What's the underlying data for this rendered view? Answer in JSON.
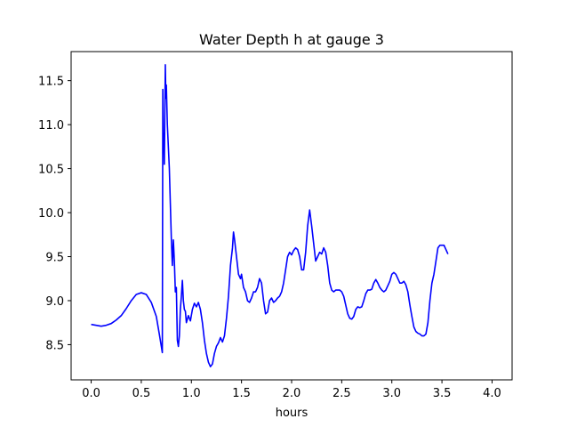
{
  "chart_data": {
    "type": "line",
    "title": "Water Depth h at gauge 3",
    "xlabel": "hours",
    "ylabel": "",
    "xlim": [
      -0.2,
      4.2
    ],
    "ylim": [
      8.1,
      11.83
    ],
    "grid": false,
    "xticks": [
      0.0,
      0.5,
      1.0,
      1.5,
      2.0,
      2.5,
      3.0,
      3.5,
      4.0
    ],
    "xtick_labels": [
      "0.0",
      "0.5",
      "1.0",
      "1.5",
      "2.0",
      "2.5",
      "3.0",
      "3.5",
      "4.0"
    ],
    "yticks": [
      8.5,
      9.0,
      9.5,
      10.0,
      10.5,
      11.0,
      11.5
    ],
    "ytick_labels": [
      "8.5",
      "9.0",
      "9.5",
      "10.0",
      "10.5",
      "11.0",
      "11.5"
    ],
    "series": [
      {
        "color": "#0000ff",
        "points": [
          [
            0.0,
            8.73
          ],
          [
            0.05,
            8.72
          ],
          [
            0.1,
            8.71
          ],
          [
            0.15,
            8.72
          ],
          [
            0.2,
            8.74
          ],
          [
            0.25,
            8.78
          ],
          [
            0.3,
            8.83
          ],
          [
            0.35,
            8.91
          ],
          [
            0.4,
            9.0
          ],
          [
            0.45,
            9.07
          ],
          [
            0.5,
            9.09
          ],
          [
            0.55,
            9.07
          ],
          [
            0.6,
            8.98
          ],
          [
            0.65,
            8.82
          ],
          [
            0.68,
            8.62
          ],
          [
            0.7,
            8.48
          ],
          [
            0.71,
            8.41
          ],
          [
            0.715,
            11.4
          ],
          [
            0.72,
            10.7
          ],
          [
            0.725,
            10.9
          ],
          [
            0.73,
            10.55
          ],
          [
            0.74,
            11.68
          ],
          [
            0.745,
            11.3
          ],
          [
            0.75,
            11.45
          ],
          [
            0.76,
            11.0
          ],
          [
            0.77,
            10.75
          ],
          [
            0.78,
            10.5
          ],
          [
            0.79,
            10.1
          ],
          [
            0.8,
            9.7
          ],
          [
            0.81,
            9.4
          ],
          [
            0.82,
            9.69
          ],
          [
            0.83,
            9.45
          ],
          [
            0.84,
            9.1
          ],
          [
            0.85,
            9.15
          ],
          [
            0.86,
            8.55
          ],
          [
            0.87,
            8.48
          ],
          [
            0.88,
            8.6
          ],
          [
            0.89,
            8.9
          ],
          [
            0.9,
            9.05
          ],
          [
            0.91,
            9.23
          ],
          [
            0.92,
            9.0
          ],
          [
            0.93,
            8.9
          ],
          [
            0.94,
            8.88
          ],
          [
            0.95,
            8.75
          ],
          [
            0.97,
            8.83
          ],
          [
            0.99,
            8.77
          ],
          [
            1.01,
            8.9
          ],
          [
            1.03,
            8.97
          ],
          [
            1.05,
            8.93
          ],
          [
            1.07,
            8.98
          ],
          [
            1.09,
            8.9
          ],
          [
            1.11,
            8.75
          ],
          [
            1.13,
            8.55
          ],
          [
            1.15,
            8.4
          ],
          [
            1.17,
            8.3
          ],
          [
            1.19,
            8.25
          ],
          [
            1.21,
            8.28
          ],
          [
            1.23,
            8.4
          ],
          [
            1.25,
            8.48
          ],
          [
            1.27,
            8.52
          ],
          [
            1.29,
            8.58
          ],
          [
            1.31,
            8.53
          ],
          [
            1.33,
            8.6
          ],
          [
            1.35,
            8.8
          ],
          [
            1.37,
            9.05
          ],
          [
            1.39,
            9.4
          ],
          [
            1.41,
            9.6
          ],
          [
            1.42,
            9.78
          ],
          [
            1.43,
            9.7
          ],
          [
            1.45,
            9.5
          ],
          [
            1.47,
            9.3
          ],
          [
            1.49,
            9.25
          ],
          [
            1.5,
            9.3
          ],
          [
            1.52,
            9.15
          ],
          [
            1.54,
            9.1
          ],
          [
            1.56,
            9.0
          ],
          [
            1.58,
            8.98
          ],
          [
            1.6,
            9.03
          ],
          [
            1.62,
            9.1
          ],
          [
            1.64,
            9.1
          ],
          [
            1.66,
            9.15
          ],
          [
            1.68,
            9.25
          ],
          [
            1.7,
            9.2
          ],
          [
            1.72,
            9.0
          ],
          [
            1.74,
            8.85
          ],
          [
            1.76,
            8.87
          ],
          [
            1.78,
            9.0
          ],
          [
            1.8,
            9.03
          ],
          [
            1.82,
            8.98
          ],
          [
            1.84,
            9.0
          ],
          [
            1.86,
            9.03
          ],
          [
            1.88,
            9.05
          ],
          [
            1.9,
            9.1
          ],
          [
            1.92,
            9.2
          ],
          [
            1.94,
            9.35
          ],
          [
            1.96,
            9.5
          ],
          [
            1.98,
            9.55
          ],
          [
            2.0,
            9.52
          ],
          [
            2.02,
            9.57
          ],
          [
            2.04,
            9.6
          ],
          [
            2.06,
            9.58
          ],
          [
            2.08,
            9.5
          ],
          [
            2.1,
            9.35
          ],
          [
            2.12,
            9.35
          ],
          [
            2.14,
            9.55
          ],
          [
            2.16,
            9.85
          ],
          [
            2.18,
            10.03
          ],
          [
            2.2,
            9.85
          ],
          [
            2.22,
            9.65
          ],
          [
            2.24,
            9.45
          ],
          [
            2.26,
            9.5
          ],
          [
            2.28,
            9.55
          ],
          [
            2.3,
            9.53
          ],
          [
            2.32,
            9.6
          ],
          [
            2.34,
            9.55
          ],
          [
            2.36,
            9.4
          ],
          [
            2.38,
            9.2
          ],
          [
            2.4,
            9.12
          ],
          [
            2.42,
            9.1
          ],
          [
            2.44,
            9.12
          ],
          [
            2.46,
            9.12
          ],
          [
            2.48,
            9.12
          ],
          [
            2.5,
            9.1
          ],
          [
            2.52,
            9.05
          ],
          [
            2.54,
            8.95
          ],
          [
            2.56,
            8.85
          ],
          [
            2.58,
            8.8
          ],
          [
            2.6,
            8.79
          ],
          [
            2.62,
            8.82
          ],
          [
            2.64,
            8.9
          ],
          [
            2.66,
            8.93
          ],
          [
            2.68,
            8.92
          ],
          [
            2.7,
            8.93
          ],
          [
            2.72,
            9.0
          ],
          [
            2.74,
            9.08
          ],
          [
            2.76,
            9.12
          ],
          [
            2.78,
            9.12
          ],
          [
            2.8,
            9.13
          ],
          [
            2.82,
            9.2
          ],
          [
            2.84,
            9.24
          ],
          [
            2.86,
            9.2
          ],
          [
            2.88,
            9.15
          ],
          [
            2.9,
            9.12
          ],
          [
            2.92,
            9.1
          ],
          [
            2.94,
            9.12
          ],
          [
            2.96,
            9.17
          ],
          [
            2.98,
            9.22
          ],
          [
            3.0,
            9.3
          ],
          [
            3.02,
            9.32
          ],
          [
            3.04,
            9.3
          ],
          [
            3.06,
            9.25
          ],
          [
            3.08,
            9.2
          ],
          [
            3.1,
            9.2
          ],
          [
            3.12,
            9.22
          ],
          [
            3.14,
            9.18
          ],
          [
            3.16,
            9.1
          ],
          [
            3.18,
            8.95
          ],
          [
            3.2,
            8.82
          ],
          [
            3.22,
            8.7
          ],
          [
            3.24,
            8.65
          ],
          [
            3.26,
            8.63
          ],
          [
            3.28,
            8.62
          ],
          [
            3.3,
            8.6
          ],
          [
            3.32,
            8.6
          ],
          [
            3.34,
            8.62
          ],
          [
            3.36,
            8.75
          ],
          [
            3.38,
            9.0
          ],
          [
            3.4,
            9.2
          ],
          [
            3.42,
            9.3
          ],
          [
            3.44,
            9.45
          ],
          [
            3.46,
            9.6
          ],
          [
            3.48,
            9.63
          ],
          [
            3.5,
            9.63
          ],
          [
            3.52,
            9.63
          ],
          [
            3.54,
            9.58
          ],
          [
            3.56,
            9.53
          ]
        ]
      }
    ]
  }
}
